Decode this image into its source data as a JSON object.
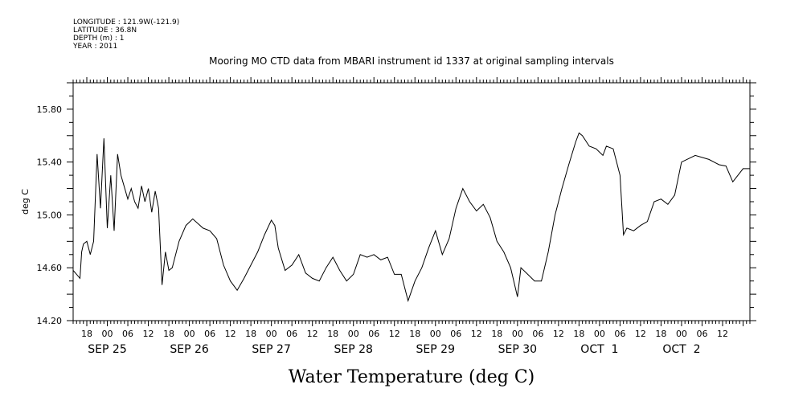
{
  "header": {
    "longitude": "LONGITUDE : 121.9W(-121.9)",
    "latitude": "LATITUDE : 36.8N",
    "depth": "DEPTH (m) : 1",
    "year": "YEAR : 2011"
  },
  "chart_data": {
    "type": "line",
    "title": "Mooring MO CTD data from MBARI instrument id 1337 at original sampling intervals",
    "xlabel": "Water Temperature (deg C)",
    "ylabel": "deg C",
    "ylim": [
      14.2,
      16.0
    ],
    "yticks": [
      14.2,
      14.6,
      15.0,
      15.4,
      15.8
    ],
    "ytick_labels": [
      "14.20",
      "14.60",
      "15.00",
      "15.40",
      "15.80"
    ],
    "xlim": [
      "2011-09-24T14:00",
      "2011-10-02T20:00"
    ],
    "hour_labels": [
      "18",
      "00",
      "06",
      "12",
      "18",
      "00",
      "06",
      "12",
      "18",
      "00",
      "06",
      "12",
      "18",
      "00",
      "06",
      "12",
      "18",
      "00",
      "06",
      "12",
      "18",
      "00",
      "06",
      "12",
      "18",
      "00",
      "06",
      "12",
      "18",
      "00",
      "06",
      "12"
    ],
    "date_labels": [
      "SEP 25",
      "SEP 26",
      "SEP 27",
      "SEP 28",
      "SEP 29",
      "SEP 30",
      "OCT  1",
      "OCT  2"
    ],
    "grid": false,
    "series": [
      {
        "color": "#000000",
        "points": [
          [
            "2011-09-24T14:00",
            14.58
          ],
          [
            "2011-09-24T15:00",
            14.55
          ],
          [
            "2011-09-24T16:00",
            14.52
          ],
          [
            "2011-09-24T16:30",
            14.72
          ],
          [
            "2011-09-24T17:00",
            14.78
          ],
          [
            "2011-09-24T18:00",
            14.8
          ],
          [
            "2011-09-24T19:00",
            14.7
          ],
          [
            "2011-09-24T20:00",
            14.8
          ],
          [
            "2011-09-24T21:00",
            15.46
          ],
          [
            "2011-09-24T22:00",
            15.05
          ],
          [
            "2011-09-24T23:00",
            15.58
          ],
          [
            "2011-09-25T00:00",
            14.9
          ],
          [
            "2011-09-25T01:00",
            15.3
          ],
          [
            "2011-09-25T02:00",
            14.88
          ],
          [
            "2011-09-25T03:00",
            15.46
          ],
          [
            "2011-09-25T04:00",
            15.3
          ],
          [
            "2011-09-25T06:00",
            15.12
          ],
          [
            "2011-09-25T07:00",
            15.2
          ],
          [
            "2011-09-25T08:00",
            15.1
          ],
          [
            "2011-09-25T09:00",
            15.05
          ],
          [
            "2011-09-25T10:00",
            15.22
          ],
          [
            "2011-09-25T11:00",
            15.1
          ],
          [
            "2011-09-25T12:00",
            15.2
          ],
          [
            "2011-09-25T13:00",
            15.02
          ],
          [
            "2011-09-25T14:00",
            15.18
          ],
          [
            "2011-09-25T15:00",
            15.05
          ],
          [
            "2011-09-25T16:00",
            14.47
          ],
          [
            "2011-09-25T17:00",
            14.72
          ],
          [
            "2011-09-25T18:00",
            14.58
          ],
          [
            "2011-09-25T19:00",
            14.6
          ],
          [
            "2011-09-25T21:00",
            14.8
          ],
          [
            "2011-09-25T23:00",
            14.92
          ],
          [
            "2011-09-26T01:00",
            14.97
          ],
          [
            "2011-09-26T04:00",
            14.9
          ],
          [
            "2011-09-26T06:00",
            14.88
          ],
          [
            "2011-09-26T08:00",
            14.82
          ],
          [
            "2011-09-26T10:00",
            14.62
          ],
          [
            "2011-09-26T12:00",
            14.5
          ],
          [
            "2011-09-26T14:00",
            14.43
          ],
          [
            "2011-09-26T16:00",
            14.52
          ],
          [
            "2011-09-26T18:00",
            14.62
          ],
          [
            "2011-09-26T20:00",
            14.72
          ],
          [
            "2011-09-26T22:00",
            14.85
          ],
          [
            "2011-09-27T00:00",
            14.96
          ],
          [
            "2011-09-27T01:00",
            14.92
          ],
          [
            "2011-09-27T02:00",
            14.75
          ],
          [
            "2011-09-27T04:00",
            14.58
          ],
          [
            "2011-09-27T06:00",
            14.62
          ],
          [
            "2011-09-27T08:00",
            14.7
          ],
          [
            "2011-09-27T10:00",
            14.56
          ],
          [
            "2011-09-27T12:00",
            14.52
          ],
          [
            "2011-09-27T14:00",
            14.5
          ],
          [
            "2011-09-27T16:00",
            14.6
          ],
          [
            "2011-09-27T18:00",
            14.68
          ],
          [
            "2011-09-27T20:00",
            14.58
          ],
          [
            "2011-09-27T22:00",
            14.5
          ],
          [
            "2011-09-28T00:00",
            14.55
          ],
          [
            "2011-09-28T02:00",
            14.7
          ],
          [
            "2011-09-28T04:00",
            14.68
          ],
          [
            "2011-09-28T06:00",
            14.7
          ],
          [
            "2011-09-28T08:00",
            14.66
          ],
          [
            "2011-09-28T10:00",
            14.68
          ],
          [
            "2011-09-28T12:00",
            14.55
          ],
          [
            "2011-09-28T14:00",
            14.55
          ],
          [
            "2011-09-28T16:00",
            14.35
          ],
          [
            "2011-09-28T18:00",
            14.5
          ],
          [
            "2011-09-28T20:00",
            14.6
          ],
          [
            "2011-09-28T22:00",
            14.75
          ],
          [
            "2011-09-29T00:00",
            14.88
          ],
          [
            "2011-09-29T02:00",
            14.7
          ],
          [
            "2011-09-29T04:00",
            14.82
          ],
          [
            "2011-09-29T06:00",
            15.05
          ],
          [
            "2011-09-29T08:00",
            15.2
          ],
          [
            "2011-09-29T10:00",
            15.1
          ],
          [
            "2011-09-29T12:00",
            15.03
          ],
          [
            "2011-09-29T14:00",
            15.08
          ],
          [
            "2011-09-29T16:00",
            14.98
          ],
          [
            "2011-09-29T18:00",
            14.8
          ],
          [
            "2011-09-29T20:00",
            14.72
          ],
          [
            "2011-09-29T22:00",
            14.6
          ],
          [
            "2011-09-30T00:00",
            14.38
          ],
          [
            "2011-09-30T01:00",
            14.6
          ],
          [
            "2011-09-30T03:00",
            14.55
          ],
          [
            "2011-09-30T05:00",
            14.5
          ],
          [
            "2011-09-30T07:00",
            14.5
          ],
          [
            "2011-09-30T09:00",
            14.72
          ],
          [
            "2011-09-30T11:00",
            15.0
          ],
          [
            "2011-09-30T13:00",
            15.2
          ],
          [
            "2011-09-30T15:00",
            15.38
          ],
          [
            "2011-09-30T17:00",
            15.55
          ],
          [
            "2011-09-30T18:00",
            15.62
          ],
          [
            "2011-09-30T19:00",
            15.6
          ],
          [
            "2011-09-30T21:00",
            15.52
          ],
          [
            "2011-09-30T23:00",
            15.5
          ],
          [
            "2011-10-01T01:00",
            15.45
          ],
          [
            "2011-10-01T02:00",
            15.52
          ],
          [
            "2011-10-01T04:00",
            15.5
          ],
          [
            "2011-10-01T06:00",
            15.3
          ],
          [
            "2011-10-01T07:00",
            14.85
          ],
          [
            "2011-10-01T08:00",
            14.9
          ],
          [
            "2011-10-01T10:00",
            14.88
          ],
          [
            "2011-10-01T12:00",
            14.92
          ],
          [
            "2011-10-01T14:00",
            14.95
          ],
          [
            "2011-10-01T16:00",
            15.1
          ],
          [
            "2011-10-01T18:00",
            15.12
          ],
          [
            "2011-10-01T20:00",
            15.08
          ],
          [
            "2011-10-01T22:00",
            15.15
          ],
          [
            "2011-10-02T00:00",
            15.4
          ],
          [
            "2011-10-02T04:00",
            15.45
          ],
          [
            "2011-10-02T08:00",
            15.42
          ],
          [
            "2011-10-02T11:00",
            15.38
          ],
          [
            "2011-10-02T13:00",
            15.37
          ],
          [
            "2011-10-02T15:00",
            15.25
          ],
          [
            "2011-10-02T18:00",
            15.35
          ],
          [
            "2011-10-02T20:00",
            15.35
          ]
        ]
      }
    ]
  }
}
